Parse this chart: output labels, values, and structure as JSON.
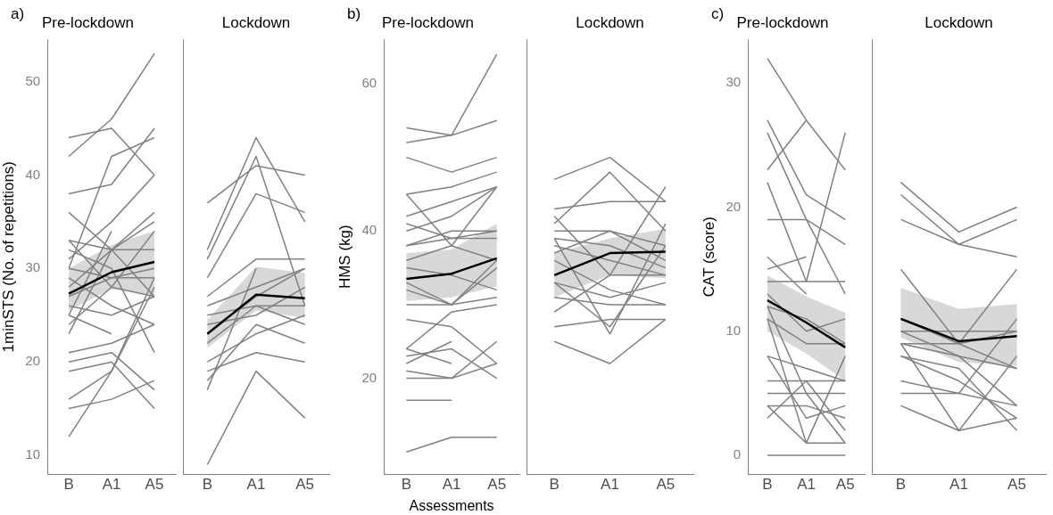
{
  "chart_data": [
    {
      "type": "line",
      "title": "Pre-lockdown",
      "annotations": [
        "a)"
      ],
      "ylabel": "1minSTS (No. of repetitions)",
      "categories": [
        "B",
        "A1",
        "A5"
      ],
      "ylim": [
        8,
        54.5
      ],
      "yticks": [
        10,
        20,
        30,
        40,
        50
      ],
      "grid": false,
      "legend": false,
      "marker": "none",
      "series": [
        {
          "color": "#808080",
          "values": [
            44,
            45,
            40
          ]
        },
        {
          "color": "#808080",
          "values": [
            42,
            46,
            53
          ]
        },
        {
          "color": "#808080",
          "values": [
            38,
            39,
            45
          ]
        },
        {
          "color": "#808080",
          "values": [
            30,
            42,
            44
          ]
        },
        {
          "color": "#808080",
          "values": [
            31,
            35,
            40
          ]
        },
        {
          "color": "#808080",
          "values": [
            33,
            32,
            36
          ]
        },
        {
          "color": "#808080",
          "values": [
            36,
            32,
            35
          ]
        },
        {
          "color": "#808080",
          "values": [
            28,
            32,
            32
          ]
        },
        {
          "color": "#808080",
          "values": [
            25,
            34,
            null
          ]
        },
        {
          "color": "#808080",
          "values": [
            24,
            28,
            34
          ]
        },
        {
          "color": "#808080",
          "values": [
            27,
            29,
            30
          ]
        },
        {
          "color": "#808080",
          "values": [
            30,
            29,
            29
          ]
        },
        {
          "color": "#808080",
          "values": [
            33,
            28,
            27
          ]
        },
        {
          "color": "#808080",
          "values": [
            29,
            26,
            24
          ]
        },
        {
          "color": "#808080",
          "values": [
            26,
            25,
            27
          ]
        },
        {
          "color": "#808080",
          "values": [
            23,
            32,
            27
          ]
        },
        {
          "color": "#808080",
          "values": [
            21,
            22,
            24
          ]
        },
        {
          "color": "#808080",
          "values": [
            20,
            21,
            17
          ]
        },
        {
          "color": "#808080",
          "values": [
            19,
            20,
            15
          ]
        },
        {
          "color": "#808080",
          "values": [
            16,
            19,
            29
          ]
        },
        {
          "color": "#808080",
          "values": [
            15,
            16,
            18
          ]
        },
        {
          "color": "#808080",
          "values": [
            12,
            19,
            28
          ]
        },
        {
          "color": "#808080",
          "values": [
            25,
            23,
            null
          ]
        },
        {
          "color": "#808080",
          "values": [
            32,
            30,
            21
          ]
        },
        {
          "color": "#000000",
          "values": [
            27.3,
            29.6,
            30.7
          ],
          "lower": [
            25.5,
            27.8,
            27.2
          ],
          "upper": [
            30,
            32.5,
            34
          ]
        }
      ]
    },
    {
      "type": "line",
      "title": "Lockdown",
      "categories": [
        "B",
        "A1",
        "A5"
      ],
      "ylim": [
        8,
        54.5
      ],
      "grid": false,
      "legend": false,
      "marker": "none",
      "tick_labels": "x",
      "series": [
        {
          "color": "#808080",
          "values": [
            32,
            44,
            35
          ]
        },
        {
          "color": "#808080",
          "values": [
            31,
            42,
            26
          ]
        },
        {
          "color": "#808080",
          "values": [
            37,
            41,
            40
          ]
        },
        {
          "color": "#808080",
          "values": [
            29,
            38,
            36
          ]
        },
        {
          "color": "#808080",
          "values": [
            27,
            31,
            31
          ]
        },
        {
          "color": "#808080",
          "values": [
            26,
            28,
            30
          ]
        },
        {
          "color": "#808080",
          "values": [
            23,
            27,
            30
          ]
        },
        {
          "color": "#808080",
          "values": [
            25,
            26,
            26
          ]
        },
        {
          "color": "#808080",
          "values": [
            24,
            25,
            28
          ]
        },
        {
          "color": "#808080",
          "values": [
            22,
            26,
            24
          ]
        },
        {
          "color": "#808080",
          "values": [
            20,
            23,
            25
          ]
        },
        {
          "color": "#808080",
          "values": [
            18,
            24,
            22
          ]
        },
        {
          "color": "#808080",
          "values": [
            19,
            21,
            20
          ]
        },
        {
          "color": "#808080",
          "values": [
            17,
            30,
            null
          ]
        },
        {
          "color": "#808080",
          "values": [
            9,
            19,
            14
          ]
        },
        {
          "color": "#000000",
          "values": [
            23,
            27.2,
            26.8
          ],
          "lower": [
            21.5,
            25.5,
            24.7
          ],
          "upper": [
            24.5,
            30.2,
            29.5
          ]
        }
      ]
    },
    {
      "type": "line",
      "title": "Pre-lockdown",
      "annotations": [
        "b)"
      ],
      "ylabel": "HMS (kg)",
      "xlabel": "Assessments",
      "categories": [
        "B",
        "A1",
        "A5"
      ],
      "ylim": [
        7,
        66
      ],
      "yticks": [
        20,
        40,
        60
      ],
      "grid": false,
      "legend": false,
      "marker": "none",
      "series": [
        {
          "color": "#808080",
          "values": [
            54,
            53,
            64
          ]
        },
        {
          "color": "#808080",
          "values": [
            52,
            53,
            55
          ]
        },
        {
          "color": "#808080",
          "values": [
            50,
            48,
            50
          ]
        },
        {
          "color": "#808080",
          "values": [
            45,
            46,
            48
          ]
        },
        {
          "color": "#808080",
          "values": [
            42,
            44,
            46
          ]
        },
        {
          "color": "#808080",
          "values": [
            41,
            39,
            40
          ]
        },
        {
          "color": "#808080",
          "values": [
            40,
            42,
            46
          ]
        },
        {
          "color": "#808080",
          "values": [
            38,
            40,
            40
          ]
        },
        {
          "color": "#808080",
          "values": [
            38,
            39,
            39
          ]
        },
        {
          "color": "#808080",
          "values": [
            45,
            38,
            46
          ]
        },
        {
          "color": "#808080",
          "values": [
            36,
            38,
            36
          ]
        },
        {
          "color": "#808080",
          "values": [
            35,
            34,
            32
          ]
        },
        {
          "color": "#808080",
          "values": [
            33,
            30,
            36
          ]
        },
        {
          "color": "#808080",
          "values": [
            32,
            30,
            31
          ]
        },
        {
          "color": "#808080",
          "values": [
            30,
            30,
            35
          ]
        },
        {
          "color": "#808080",
          "values": [
            28,
            27,
            22
          ]
        },
        {
          "color": "#808080",
          "values": [
            24,
            29,
            30
          ]
        },
        {
          "color": "#808080",
          "values": [
            23,
            24,
            20
          ]
        },
        {
          "color": "#808080",
          "values": [
            22,
            25,
            null
          ]
        },
        {
          "color": "#808080",
          "values": [
            24,
            22,
            null
          ]
        },
        {
          "color": "#808080",
          "values": [
            21,
            20,
            22
          ]
        },
        {
          "color": "#808080",
          "values": [
            20,
            20,
            25
          ]
        },
        {
          "color": "#808080",
          "values": [
            17,
            17,
            null
          ]
        },
        {
          "color": "#808080",
          "values": [
            10,
            12,
            12
          ]
        },
        {
          "color": "#000000",
          "values": [
            33.5,
            34.2,
            36.3
          ],
          "lower": [
            30.5,
            31,
            32.5
          ],
          "upper": [
            37,
            37.5,
            41
          ]
        }
      ]
    },
    {
      "type": "line",
      "title": "Lockdown",
      "categories": [
        "B",
        "A1",
        "A5"
      ],
      "ylim": [
        7,
        66
      ],
      "grid": false,
      "legend": false,
      "marker": "none",
      "tick_labels": "x",
      "series": [
        {
          "color": "#808080",
          "values": [
            47,
            50,
            44
          ]
        },
        {
          "color": "#808080",
          "values": [
            41,
            48,
            40
          ]
        },
        {
          "color": "#808080",
          "values": [
            43,
            44,
            44
          ]
        },
        {
          "color": "#808080",
          "values": [
            40,
            40,
            38
          ]
        },
        {
          "color": "#808080",
          "values": [
            39,
            38,
            35
          ]
        },
        {
          "color": "#808080",
          "values": [
            42,
            34,
            46
          ]
        },
        {
          "color": "#808080",
          "values": [
            38,
            36,
            34
          ]
        },
        {
          "color": "#808080",
          "values": [
            37,
            40,
            36
          ]
        },
        {
          "color": "#808080",
          "values": [
            36,
            32,
            30
          ]
        },
        {
          "color": "#808080",
          "values": [
            33,
            31,
            33
          ]
        },
        {
          "color": "#808080",
          "values": [
            31,
            30,
            30
          ]
        },
        {
          "color": "#808080",
          "values": [
            29,
            34,
            34
          ]
        },
        {
          "color": "#808080",
          "values": [
            27,
            28,
            28
          ]
        },
        {
          "color": "#808080",
          "values": [
            25,
            22,
            28
          ]
        },
        {
          "color": "#808080",
          "values": [
            33,
            27,
            38
          ]
        },
        {
          "color": "#808080",
          "values": [
            39,
            26,
            41
          ]
        },
        {
          "color": "#000000",
          "values": [
            34,
            37,
            37.2
          ],
          "lower": [
            31,
            34,
            33.6
          ],
          "upper": [
            37,
            39,
            40.3
          ]
        }
      ]
    },
    {
      "type": "line",
      "title": "Pre-lockdown",
      "annotations": [
        "c)"
      ],
      "ylabel": "CAT (score)",
      "categories": [
        "B",
        "A1",
        "A5"
      ],
      "ylim": [
        -1.5,
        33.5
      ],
      "yticks": [
        0,
        10,
        20,
        30
      ],
      "grid": false,
      "legend": false,
      "marker": "none",
      "series": [
        {
          "color": "#808080",
          "values": [
            32,
            27,
            23
          ]
        },
        {
          "color": "#808080",
          "values": [
            27,
            21,
            19
          ]
        },
        {
          "color": "#808080",
          "values": [
            26,
            19,
            17
          ]
        },
        {
          "color": "#808080",
          "values": [
            23,
            27,
            null
          ]
        },
        {
          "color": "#808080",
          "values": [
            22,
            14,
            14
          ]
        },
        {
          "color": "#808080",
          "values": [
            19,
            19,
            13
          ]
        },
        {
          "color": "#808080",
          "values": [
            16,
            13,
            null
          ]
        },
        {
          "color": "#808080",
          "values": [
            15,
            16,
            null
          ]
        },
        {
          "color": "#808080",
          "values": [
            14,
            14,
            26
          ]
        },
        {
          "color": "#808080",
          "values": [
            13,
            10,
            11
          ]
        },
        {
          "color": "#808080",
          "values": [
            12,
            11,
            9
          ]
        },
        {
          "color": "#808080",
          "values": [
            11,
            9,
            9
          ]
        },
        {
          "color": "#808080",
          "values": [
            8,
            7,
            6
          ]
        },
        {
          "color": "#808080",
          "values": [
            6,
            6,
            6
          ]
        },
        {
          "color": "#808080",
          "values": [
            5,
            5,
            5
          ]
        },
        {
          "color": "#808080",
          "values": [
            4,
            4,
            3
          ]
        },
        {
          "color": "#808080",
          "values": [
            4,
            1,
            1
          ]
        },
        {
          "color": "#808080",
          "values": [
            3,
            6,
            2
          ]
        },
        {
          "color": "#808080",
          "values": [
            11,
            1,
            8
          ]
        },
        {
          "color": "#808080",
          "values": [
            0,
            0,
            0
          ]
        },
        {
          "color": "#808080",
          "values": [
            12,
            5,
            1
          ]
        },
        {
          "color": "#808080",
          "values": [
            8,
            3,
            4
          ]
        },
        {
          "color": "#000000",
          "values": [
            12.5,
            10.7,
            8.7
          ],
          "lower": [
            10,
            8.2,
            6
          ],
          "upper": [
            14.5,
            12.8,
            11.5
          ]
        }
      ]
    },
    {
      "type": "line",
      "title": "Lockdown",
      "categories": [
        "B",
        "A1",
        "A5"
      ],
      "ylim": [
        -1.5,
        33.5
      ],
      "grid": false,
      "legend": false,
      "marker": "none",
      "tick_labels": "x",
      "series": [
        {
          "color": "#808080",
          "values": [
            22,
            18,
            20
          ]
        },
        {
          "color": "#808080",
          "values": [
            21,
            17,
            19
          ]
        },
        {
          "color": "#808080",
          "values": [
            19,
            17,
            16
          ]
        },
        {
          "color": "#808080",
          "values": [
            15,
            9,
            15
          ]
        },
        {
          "color": "#808080",
          "values": [
            11,
            9,
            10
          ]
        },
        {
          "color": "#808080",
          "values": [
            10,
            10,
            10
          ]
        },
        {
          "color": "#808080",
          "values": [
            9,
            9,
            7
          ]
        },
        {
          "color": "#808080",
          "values": [
            9,
            8,
            7
          ]
        },
        {
          "color": "#808080",
          "values": [
            8,
            7,
            2
          ]
        },
        {
          "color": "#808080",
          "values": [
            10,
            8,
            4
          ]
        },
        {
          "color": "#808080",
          "values": [
            8,
            6,
            3
          ]
        },
        {
          "color": "#808080",
          "values": [
            6,
            5,
            11
          ]
        },
        {
          "color": "#808080",
          "values": [
            5,
            5,
            4
          ]
        },
        {
          "color": "#808080",
          "values": [
            4,
            2,
            3
          ]
        },
        {
          "color": "#808080",
          "values": [
            9,
            2,
            8
          ]
        },
        {
          "color": "#000000",
          "values": [
            11,
            9.2,
            9.6
          ],
          "lower": [
            9.5,
            7.5,
            7.2
          ],
          "upper": [
            13.5,
            11.8,
            12.2
          ]
        }
      ]
    }
  ]
}
